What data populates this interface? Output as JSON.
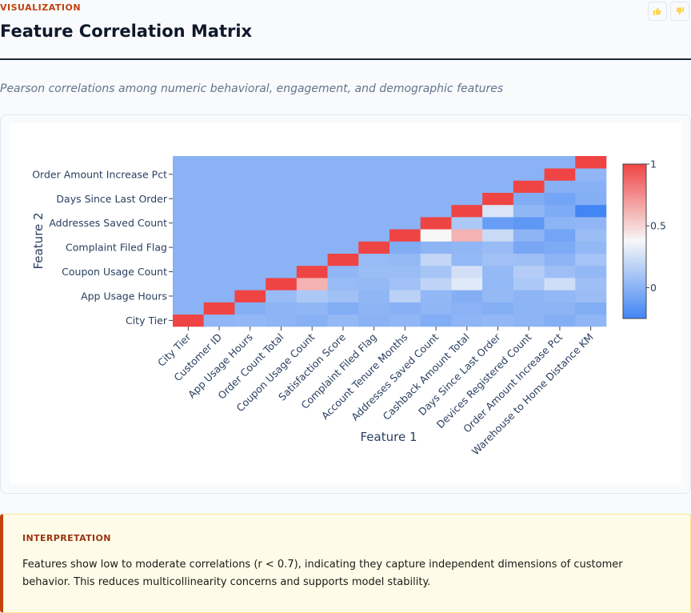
{
  "header": {
    "eyebrow": "VISUALIZATION",
    "title": "Feature Correlation Matrix",
    "subtitle": "Pearson correlations among numeric behavioral, engagement, and demographic features",
    "thumbs_up_icon": "thumbs-up-icon",
    "thumbs_down_icon": "thumbs-down-icon"
  },
  "chart_data": {
    "type": "heatmap",
    "xlabel": "Feature 1",
    "ylabel": "Feature 2",
    "x_categories": [
      "City Tier",
      "Customer ID",
      "App Usage Hours",
      "Order Count Total",
      "Coupon Usage Count",
      "Satisfaction Score",
      "Complaint Filed Flag",
      "Account Tenure Months",
      "Addresses Saved Count",
      "Cashback Amount Total",
      "Days Since Last Order",
      "Devices Registered Count",
      "Order Amount Increase Pct",
      "Warehouse to Home Distance KM"
    ],
    "y_categories": [
      "City Tier",
      "Customer ID",
      "App Usage Hours",
      "Order Count Total",
      "Coupon Usage Count",
      "Satisfaction Score",
      "Complaint Filed Flag",
      "Account Tenure Months",
      "Addresses Saved Count",
      "Cashback Amount Total",
      "Days Since Last Order",
      "Devices Registered Count",
      "Order Amount Increase Pct",
      "Warehouse to Home Distance KM"
    ],
    "y_tick_labels_shown": [
      "City Tier",
      "App Usage Hours",
      "Coupon Usage Count",
      "Complaint Filed Flag",
      "Addresses Saved Count",
      "Days Since Last Order",
      "Order Amount Increase Pct"
    ],
    "z": [
      [
        1,
        0.02,
        0.03,
        0.01,
        -0.01,
        0.04,
        0,
        0.02,
        -0.03,
        0.01,
        0.03,
        0.01,
        -0.02,
        0.02
      ],
      [
        0,
        1,
        -0.02,
        0.01,
        0.02,
        -0.03,
        0.01,
        -0.01,
        0.02,
        0,
        -0.02,
        0.01,
        0.01,
        -0.03
      ],
      [
        0,
        0,
        1,
        0.05,
        0.12,
        0.08,
        0.02,
        0.17,
        0.03,
        -0.02,
        0.04,
        0.01,
        0.03,
        0.06
      ],
      [
        0,
        0,
        0,
        1,
        0.62,
        0.05,
        0.04,
        0.08,
        0.18,
        0.3,
        0.03,
        0.12,
        0.24,
        0.07
      ],
      [
        0,
        0,
        0,
        0,
        1,
        0.02,
        0.06,
        0.06,
        0.1,
        0.25,
        0.04,
        0.15,
        0.07,
        0.03
      ],
      [
        0,
        0,
        0,
        0,
        0,
        1,
        0.05,
        0.04,
        0.2,
        0.03,
        0.08,
        0.07,
        0.01,
        0.09
      ],
      [
        0,
        0,
        0,
        0,
        0,
        0,
        1,
        -0.03,
        0.01,
        0.02,
        0.05,
        -0.06,
        -0.04,
        0.03
      ],
      [
        0,
        0,
        0,
        0,
        0,
        0,
        0,
        1,
        0.38,
        0.62,
        0.22,
        0.01,
        -0.08,
        0.06
      ],
      [
        0,
        0,
        0,
        0,
        0,
        0,
        0,
        0,
        1,
        0.12,
        -0.12,
        -0.15,
        0.01,
        0.02
      ],
      [
        0,
        0,
        0,
        0,
        0,
        0,
        0,
        0,
        0,
        1,
        0.28,
        0.02,
        -0.04,
        -0.3
      ],
      [
        0,
        0,
        0,
        0,
        0,
        0,
        0,
        0,
        0,
        0,
        1,
        -0.03,
        -0.08,
        -0.02
      ],
      [
        0,
        0,
        0,
        0,
        0,
        0,
        0,
        0,
        0,
        0,
        0,
        1,
        -0.01,
        -0.01
      ],
      [
        0,
        0,
        0,
        0,
        0,
        0,
        0,
        0,
        0,
        0,
        0,
        0,
        1,
        0.02
      ],
      [
        0,
        0,
        0,
        0,
        0,
        0,
        0,
        0,
        0,
        0,
        0,
        0,
        0,
        1
      ]
    ],
    "zmin": -0.25,
    "zmax": 1,
    "colorbar_ticks": [
      0,
      0.5,
      1
    ],
    "colorscale": [
      [
        "-0.25",
        "#4285f4"
      ],
      [
        "0.38",
        "#f7f7f7"
      ],
      [
        "1",
        "#ef4444"
      ]
    ],
    "grid": false,
    "legend": "colorbar-right"
  },
  "interpretation": {
    "heading": "INTERPRETATION",
    "body": "Features show low to moderate correlations (r < 0.7), indicating they capture independent dimensions of customer behavior. This reduces multicollinearity concerns and supports model stability."
  },
  "colors": {
    "accent": "#c2410c",
    "title": "#0f172a",
    "heatmap_low": "#4285f4",
    "heatmap_mid": "#f7f7f7",
    "heatmap_high": "#ef4444"
  }
}
